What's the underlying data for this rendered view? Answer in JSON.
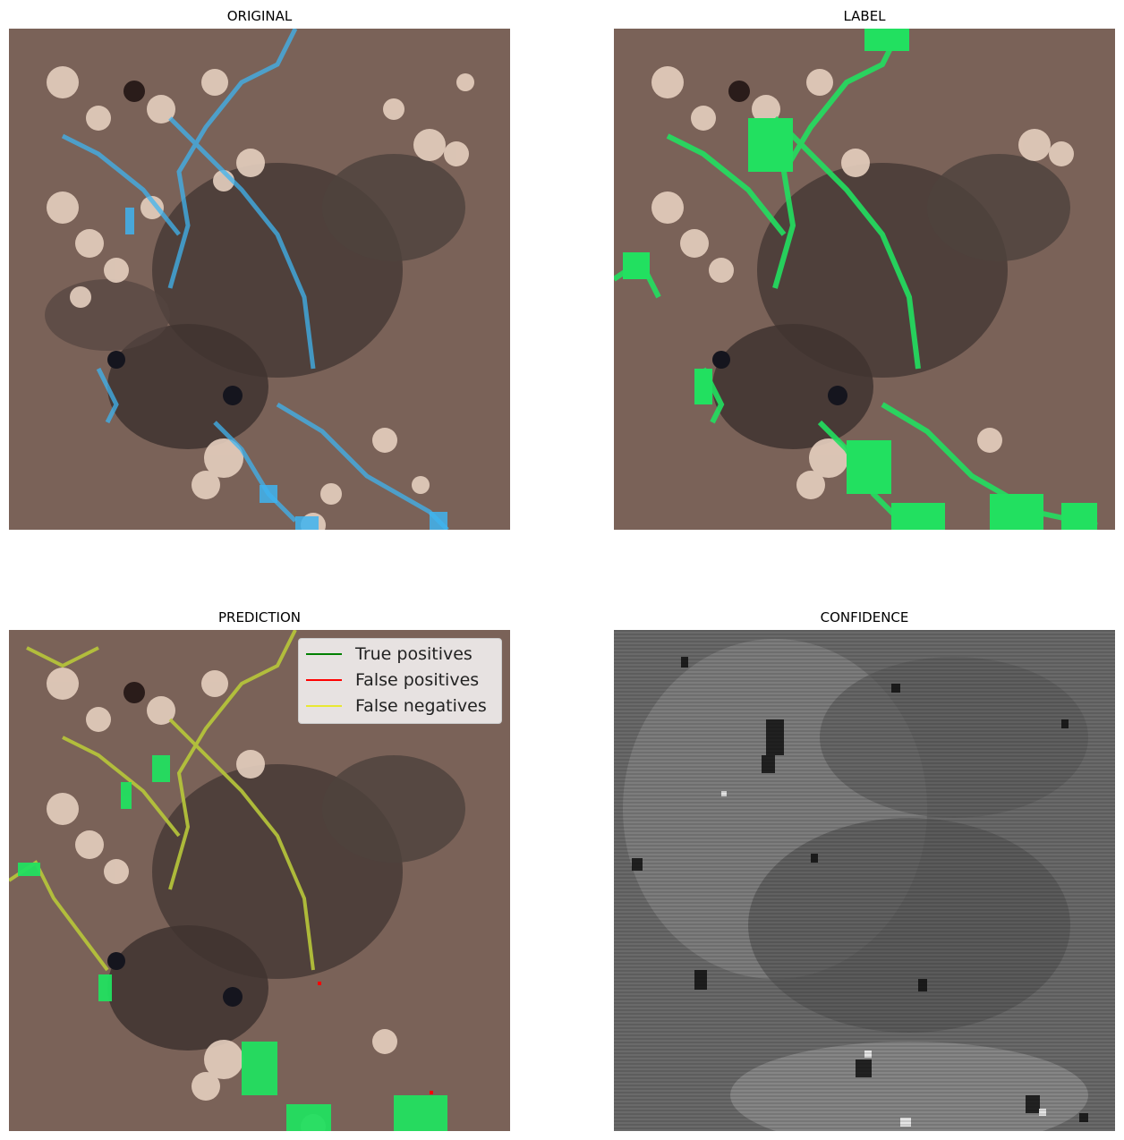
{
  "panels": {
    "original_title": "ORIGINAL",
    "label_title": "LABEL",
    "prediction_title": "PREDICTION",
    "confidence_title": "CONFIDENCE"
  },
  "legend": {
    "items": [
      {
        "label": "True positives",
        "color": "#008000"
      },
      {
        "label": "False positives",
        "color": "#ff0000"
      },
      {
        "label": "False negatives",
        "color": "#e8e832"
      }
    ]
  },
  "colors": {
    "water_blue": "#3fb4f0",
    "label_green": "#22e060",
    "terrain_brown": "#6e5a52",
    "terrain_dark": "#3a302c",
    "rock_light": "#e8d2c2"
  }
}
